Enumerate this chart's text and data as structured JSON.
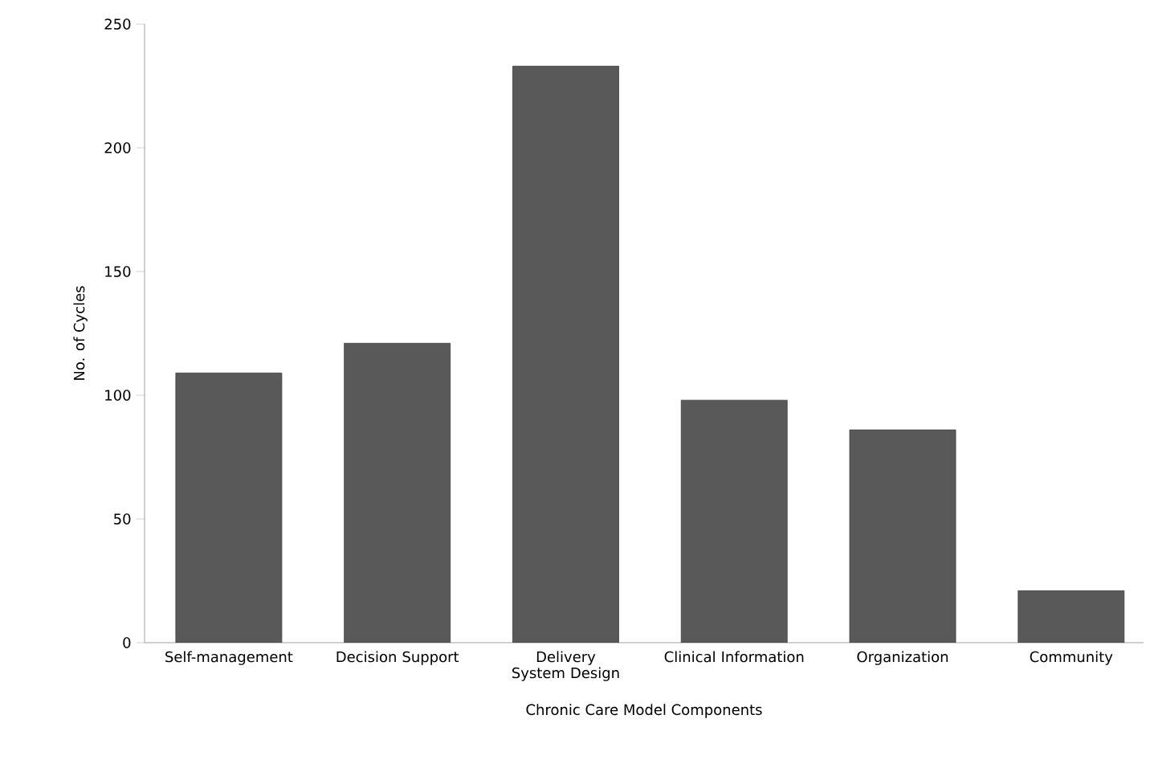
{
  "chart_data": {
    "type": "bar",
    "categories": [
      "Self-management",
      "Decision Support",
      "Delivery System Design",
      "Clinical Information",
      "Organization",
      "Community"
    ],
    "values": [
      109,
      121,
      233,
      98,
      86,
      21
    ],
    "color": "#595959",
    "xlabel": "Chronic Care Model Components",
    "ylabel": "No. of Cycles",
    "ylim": [
      0,
      250
    ],
    "yticks": [
      0,
      50,
      100,
      150,
      200,
      250
    ]
  }
}
